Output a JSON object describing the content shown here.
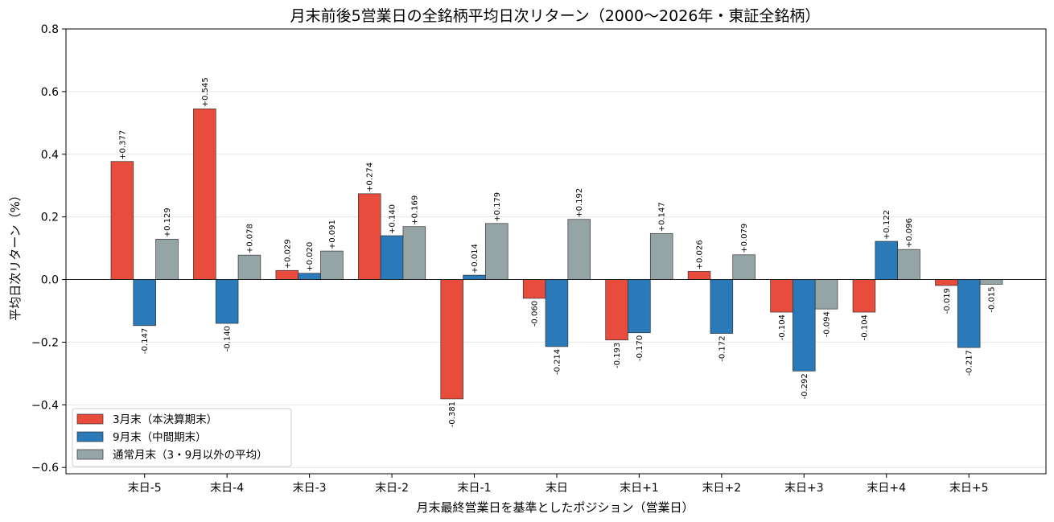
{
  "chart_data": {
    "type": "bar",
    "title": "月末前後5営業日の全銘柄平均日次リターン（2000〜2026年・東証全銘柄）",
    "xlabel": "月末最終営業日を基準としたポジション（営業日）",
    "ylabel": "平均日次リターン（%）",
    "ylim": [
      -0.62,
      0.8
    ],
    "yticks": [
      "0.8",
      "0.6",
      "0.4",
      "0.2",
      "0.0",
      "−0.2",
      "−0.4",
      "−0.6"
    ],
    "ytick_values": [
      0.8,
      0.6,
      0.4,
      0.2,
      0.0,
      -0.2,
      -0.4,
      -0.6
    ],
    "grid": "horizontal",
    "legend_position": "lower-left",
    "categories": [
      "末日-5",
      "末日-4",
      "末日-3",
      "末日-2",
      "末日-1",
      "末日",
      "末日+1",
      "末日+2",
      "末日+3",
      "末日+4",
      "末日+5"
    ],
    "series": [
      {
        "name": "3月末（本決算期末）",
        "color": "#e74c3c",
        "values": [
          0.377,
          0.545,
          0.029,
          0.274,
          -0.381,
          -0.06,
          -0.193,
          0.026,
          -0.104,
          -0.104,
          -0.019
        ],
        "labels": [
          "+0.377",
          "+0.545",
          "+0.029",
          "+0.274",
          "-0.381",
          "-0.060",
          "-0.193",
          "+0.026",
          "-0.104",
          "-0.104",
          "-0.019"
        ]
      },
      {
        "name": "9月末（中間期末）",
        "color": "#2a7ab9",
        "values": [
          -0.147,
          -0.14,
          0.02,
          0.14,
          0.014,
          -0.214,
          -0.17,
          -0.172,
          -0.292,
          0.122,
          -0.217
        ],
        "labels": [
          "-0.147",
          "-0.140",
          "+0.020",
          "+0.140",
          "+0.014",
          "-0.214",
          "-0.170",
          "-0.172",
          "-0.292",
          "+0.122",
          "-0.217"
        ]
      },
      {
        "name": "通常月末（3・9月以外の平均）",
        "color": "#95a5a6",
        "values": [
          0.129,
          0.078,
          0.091,
          0.169,
          0.179,
          0.192,
          0.147,
          0.079,
          -0.094,
          0.096,
          -0.015
        ],
        "labels": [
          "+0.129",
          "+0.078",
          "+0.091",
          "+0.169",
          "+0.179",
          "+0.192",
          "+0.147",
          "+0.079",
          "-0.094",
          "+0.096",
          "-0.015"
        ]
      }
    ]
  }
}
